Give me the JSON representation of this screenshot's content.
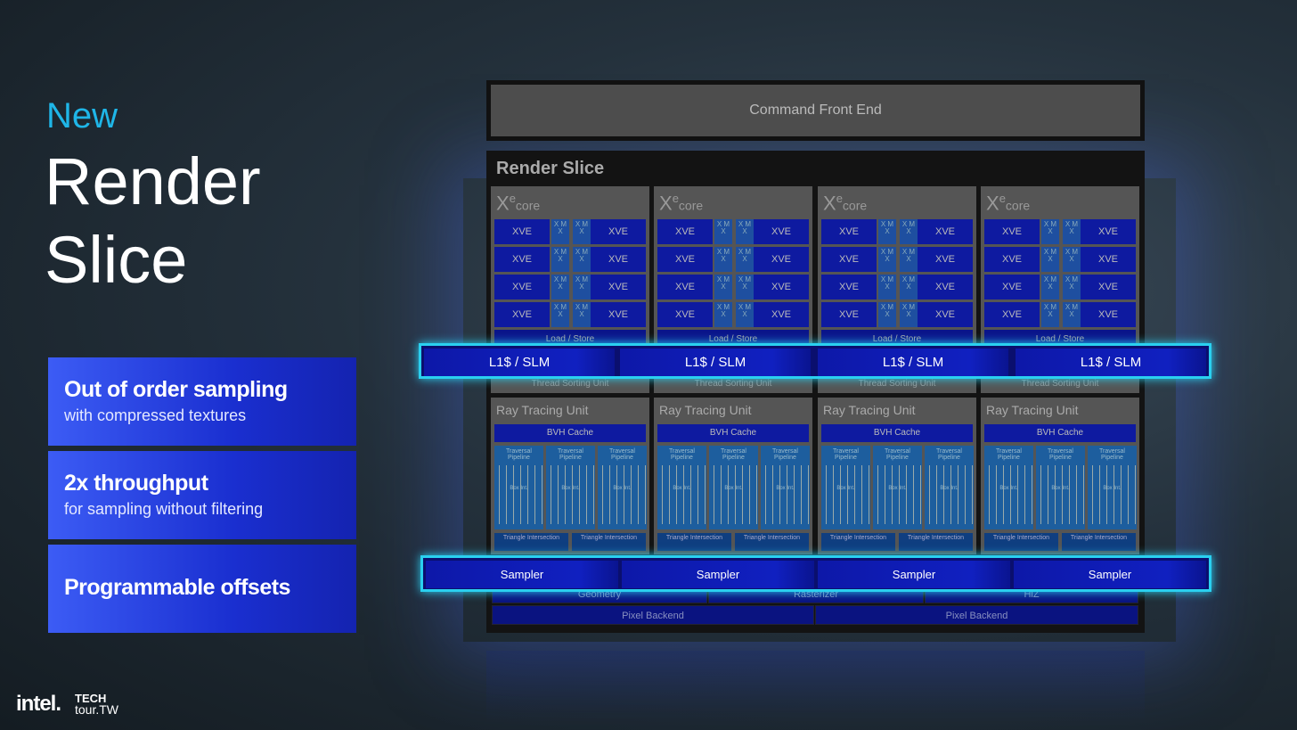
{
  "heading": {
    "kicker": "New",
    "title_line1": "Render",
    "title_line2": "Slice"
  },
  "cards": [
    {
      "title": "Out of order sampling",
      "subtitle": "with compressed textures"
    },
    {
      "title": "2x throughput",
      "subtitle": "for sampling without filtering"
    },
    {
      "title": "Programmable offsets"
    }
  ],
  "logo": {
    "brand": "intel.",
    "event_line1": "TECH",
    "event_line2": "tour.TW"
  },
  "diagram": {
    "command_front_end": "Command Front End",
    "render_slice": "Render Slice",
    "core": {
      "xe": "X",
      "xe_sup": "e",
      "xe_sub": "core",
      "xve": "XVE",
      "xmx": "X M X",
      "load_store": "Load / Store",
      "thread_sorting": "Thread Sorting Unit"
    },
    "rtu": {
      "label": "Ray Tracing Unit",
      "bvh": "BVH Cache",
      "traversal": "Traversal Pipeline",
      "box_int": "Box Int.",
      "triangle": "Triangle Intersection"
    },
    "l1": "L1$ / SLM",
    "sampler": "Sampler",
    "geometry": "Geometry",
    "rasterizer": "Rasterizer",
    "hiz": "HiZ",
    "pixel_backend": "Pixel Backend",
    "highlight_color": "#2ad0f0",
    "block_color": "#0e1aa0"
  }
}
